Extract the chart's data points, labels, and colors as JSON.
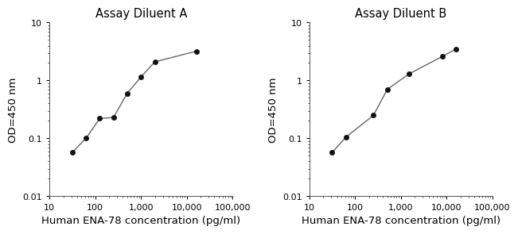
{
  "title_A": "Assay Diluent A",
  "title_B": "Assay Diluent B",
  "xlabel": "Human ENA-78 concentration (pg/ml)",
  "ylabel": "OD=450 nm",
  "x_A": [
    31.25,
    62.5,
    125,
    250,
    500,
    1000,
    2000,
    16000
  ],
  "y_A": [
    0.057,
    0.1,
    0.22,
    0.23,
    0.6,
    1.15,
    2.1,
    3.2
  ],
  "x_B": [
    31.25,
    62.5,
    250,
    500,
    1500,
    8000,
    16000
  ],
  "y_B": [
    0.057,
    0.105,
    0.25,
    0.7,
    1.3,
    2.6,
    3.5
  ],
  "xlim": [
    20,
    100000
  ],
  "ylim": [
    0.01,
    10
  ],
  "xticks": [
    10,
    100,
    1000,
    10000,
    100000
  ],
  "xtick_labels": [
    "10",
    "100",
    "1,000",
    "10,000",
    "100,000"
  ],
  "yticks": [
    0.01,
    0.1,
    1,
    10
  ],
  "ytick_labels": [
    "0.01",
    "0.1",
    "1",
    "10"
  ],
  "line_color": "#666666",
  "marker_color": "#111111",
  "marker_size": 4.5,
  "title_fontsize": 10.5,
  "label_fontsize": 9.5,
  "tick_fontsize": 8,
  "bg_color": "#ffffff"
}
